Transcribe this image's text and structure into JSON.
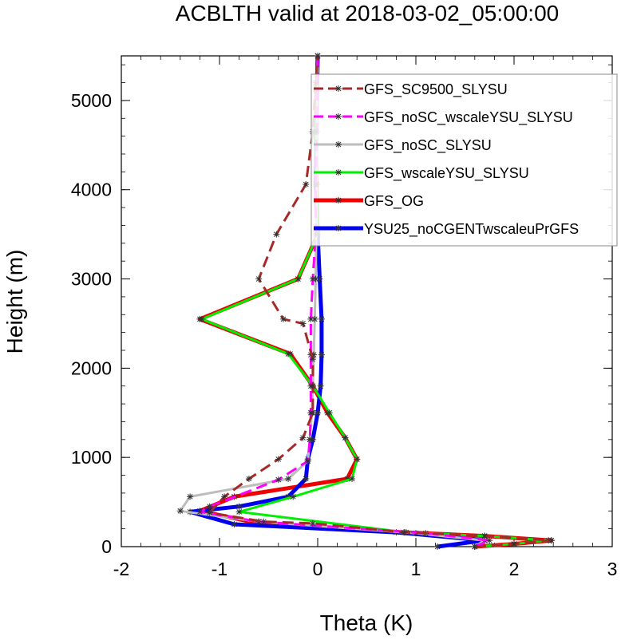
{
  "chart_data": {
    "type": "line",
    "title": "ACBLTH valid at 2018-03-02_05:00:00",
    "xlabel": "Theta (K)",
    "ylabel": "Height (m)",
    "xlim": [
      -2,
      3
    ],
    "ylim": [
      0,
      5500
    ],
    "x_ticks": [
      "-2",
      "-1",
      "0",
      "1",
      "2",
      "3"
    ],
    "x_tick_values": [
      -2,
      -1,
      0,
      1,
      2,
      3
    ],
    "y_ticks": [
      "0",
      "1000",
      "2000",
      "3000",
      "4000",
      "5000"
    ],
    "y_tick_values": [
      0,
      1000,
      2000,
      3000,
      4000,
      5000
    ],
    "legend_position": "top-right",
    "series": [
      {
        "name": "GFS_SC9500_SLYSU",
        "color": "#a52a2a",
        "dash": "dashed",
        "width": 3,
        "x": [
          1.6,
          2.0,
          2.38,
          1.7,
          0.88,
          -0.05,
          -0.55,
          -1.1,
          -0.95,
          -0.7,
          -0.4,
          -0.15,
          -0.05,
          -0.05,
          -0.05,
          -0.15,
          -0.35,
          -0.6,
          -0.42,
          -0.12,
          -0.05,
          -0.02,
          0.0
        ],
        "y": [
          0,
          30,
          70,
          120,
          160,
          260,
          280,
          380,
          560,
          760,
          980,
          1220,
          1500,
          1800,
          2100,
          2500,
          2550,
          3000,
          3500,
          4060,
          4650,
          5200,
          5500
        ]
      },
      {
        "name": "GFS_noSC_wscaleYSU_SLYSU",
        "color": "#ff00ff",
        "dash": "dashed",
        "width": 3,
        "x": [
          1.6,
          1.75,
          1.1,
          -0.6,
          -1.2,
          -1.1,
          -0.4,
          -0.1,
          -0.08,
          -0.07,
          -0.07,
          -0.07,
          -0.07,
          -0.05,
          -0.02,
          -0.02,
          -0.01,
          0.0
        ],
        "y": [
          0,
          70,
          150,
          280,
          390,
          450,
          750,
          960,
          1200,
          1500,
          1800,
          2150,
          2550,
          3000,
          3500,
          4060,
          4650,
          5500
        ]
      },
      {
        "name": "GFS_noSC_SLYSU",
        "color": "#bdbdbd",
        "dash": "solid",
        "width": 3,
        "x": [
          1.6,
          1.7,
          1.0,
          -0.6,
          -1.4,
          -1.3,
          -0.3,
          -0.1,
          -0.08,
          -0.06,
          -0.05,
          -0.04,
          -0.03,
          -0.02,
          -0.01,
          0.0
        ],
        "y": [
          0,
          70,
          150,
          280,
          400,
          560,
          760,
          960,
          1200,
          1500,
          1800,
          2150,
          2550,
          3000,
          4060,
          5500
        ]
      },
      {
        "name": "GFS_wscaleYSU_SLYSU",
        "color": "#00ee00",
        "dash": "solid",
        "width": 3,
        "x": [
          1.6,
          2.0,
          2.35,
          1.7,
          0.9,
          -0.8,
          -0.25,
          0.35,
          0.4,
          0.28,
          0.12,
          -0.05,
          -0.3,
          -1.18,
          -0.2,
          0.0,
          -0.02,
          0.0
        ],
        "y": [
          0,
          30,
          70,
          120,
          160,
          390,
          560,
          760,
          980,
          1220,
          1500,
          1800,
          2160,
          2550,
          3000,
          3500,
          4650,
          5500
        ]
      },
      {
        "name": "GFS_OG",
        "color": "#ee0000",
        "dash": "solid",
        "width": 5,
        "x": [
          1.6,
          2.0,
          2.38,
          1.7,
          0.88,
          -0.6,
          -1.2,
          -0.85,
          0.3,
          0.4,
          0.28,
          0.1,
          -0.05,
          -0.28,
          -1.2,
          -0.2,
          0.0,
          -0.02,
          0.0
        ],
        "y": [
          0,
          30,
          70,
          120,
          160,
          260,
          400,
          560,
          760,
          980,
          1220,
          1500,
          1800,
          2160,
          2550,
          3000,
          3500,
          4650,
          5500
        ]
      },
      {
        "name": "YSU25_noCGENTwscaleuPrGFS",
        "color": "#0000ee",
        "dash": "solid",
        "width": 5,
        "x": [
          1.22,
          1.7,
          0.8,
          -0.85,
          -1.3,
          -0.8,
          -0.3,
          -0.12,
          -0.1,
          -0.05,
          0.0,
          0.03,
          0.04,
          0.04,
          0.02,
          0.0,
          -0.02,
          0.0
        ],
        "y": [
          0,
          70,
          160,
          250,
          390,
          450,
          560,
          760,
          980,
          1200,
          1500,
          1800,
          2150,
          2550,
          3000,
          3500,
          4060,
          5500
        ]
      }
    ]
  }
}
